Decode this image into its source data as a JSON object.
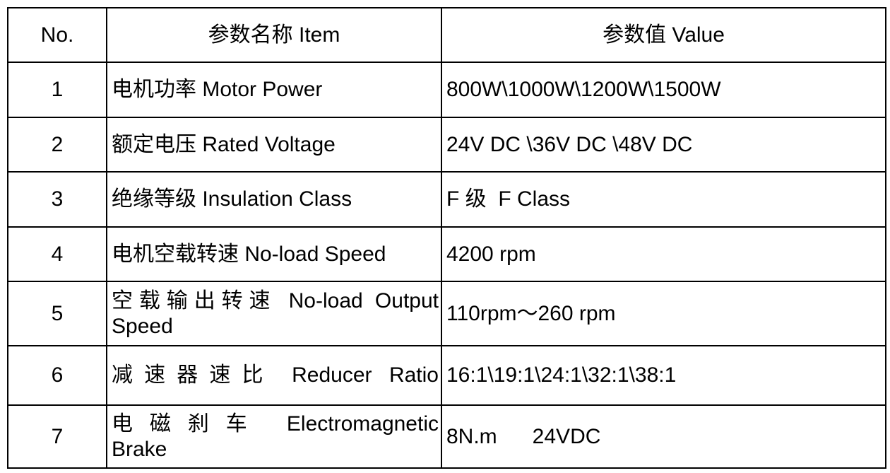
{
  "table": {
    "headers": [
      "No.",
      "参数名称 Item",
      "参数值 Value"
    ],
    "rows": [
      {
        "no": "1",
        "item": "电机功率 Motor Power",
        "value": "800W\\1000W\\1200W\\1500W"
      },
      {
        "no": "2",
        "item": "额定电压 Rated Voltage",
        "value": "24V DC \\36V DC \\48V DC"
      },
      {
        "no": "3",
        "item": "绝缘等级 Insulation Class",
        "value": "F 级  F Class"
      },
      {
        "no": "4",
        "item": "电机空载转速 No-load Speed",
        "value": "4200 rpm"
      },
      {
        "no": "5",
        "item": "空载输出转速 No-load Output\nSpeed",
        "value": "110rpm～260 rpm"
      },
      {
        "no": "6",
        "item": "减速器速比 Reducer Ratio",
        "value": "16:1\\19:1\\24:1\\32:1\\38:1"
      },
      {
        "no": "7",
        "item": "电磁刹车 Electromagnetic\nBrake",
        "value": "8N.m      24VDC"
      }
    ],
    "colors": {
      "border": "#000000",
      "text": "#000000",
      "background": "#ffffff"
    }
  }
}
